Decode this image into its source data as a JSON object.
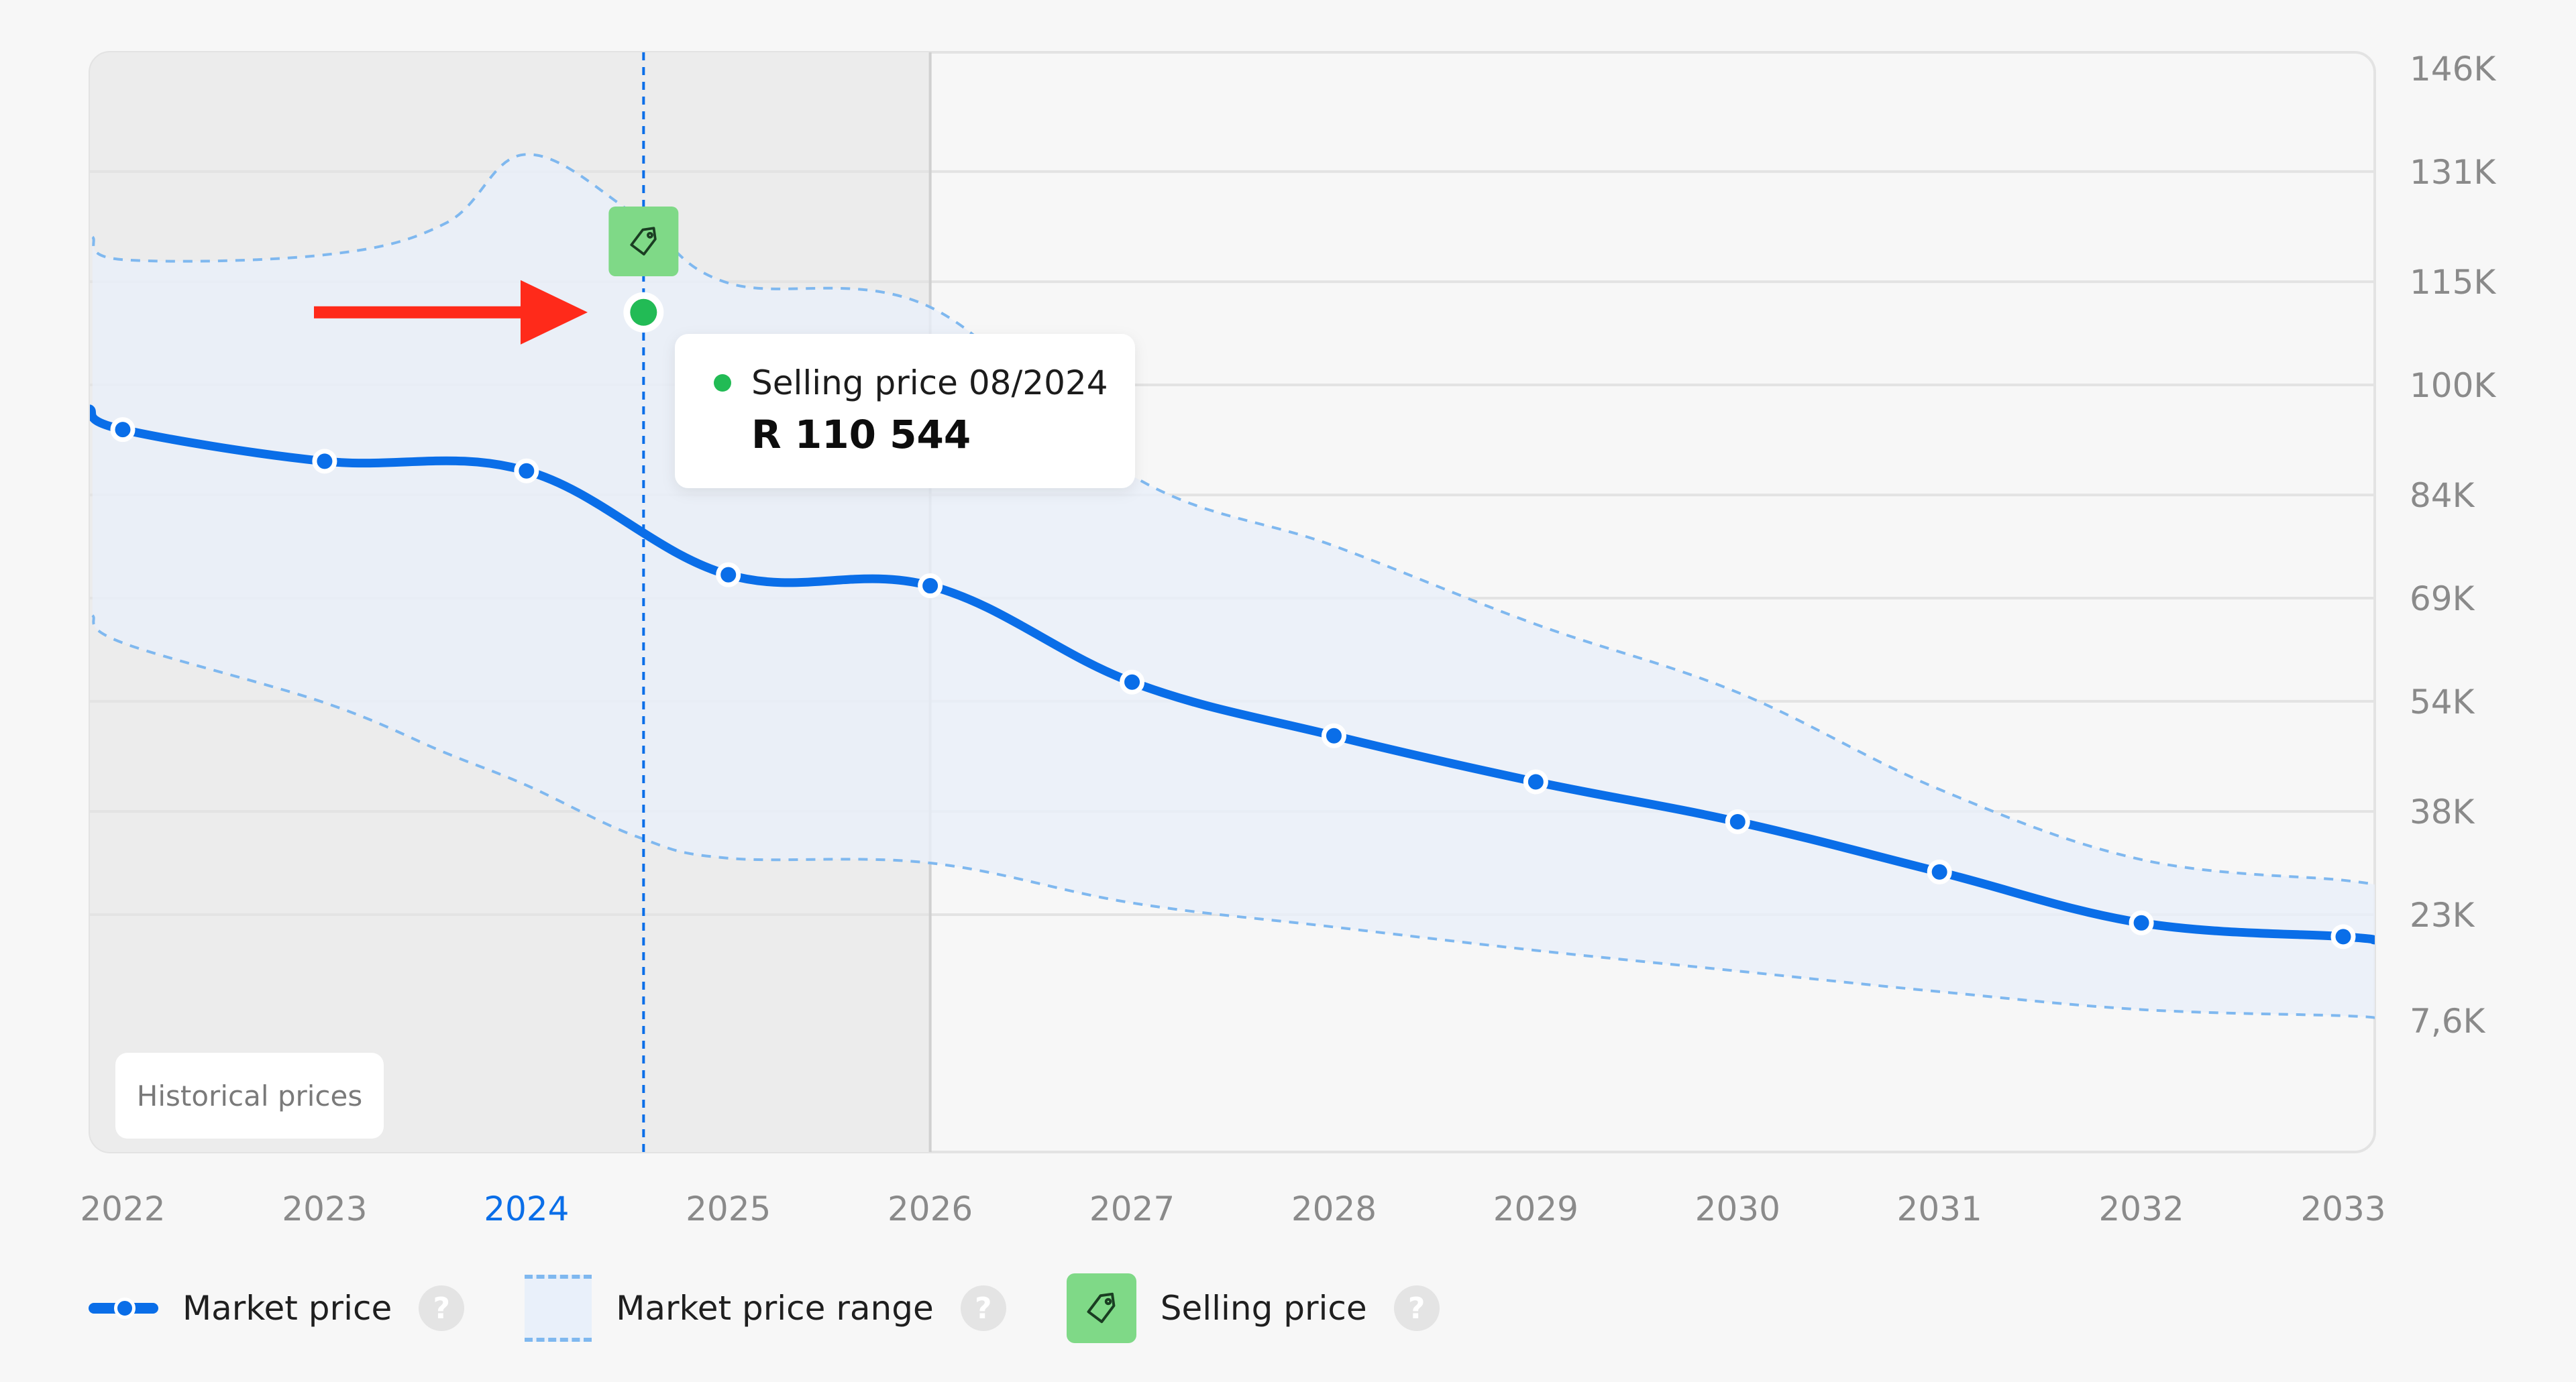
{
  "chart_data": {
    "type": "line",
    "x": [
      2022,
      2023,
      2024,
      2025,
      2026,
      2027,
      2028,
      2029,
      2030,
      2031,
      2032,
      2033
    ],
    "x_tick_labels": [
      "2022",
      "2023",
      "2024",
      "2025",
      "2026",
      "2027",
      "2028",
      "2029",
      "2030",
      "2031",
      "2032",
      "2033"
    ],
    "highlighted_tick": "2024",
    "y_tick_labels": [
      "146K",
      "131K",
      "115K",
      "100K",
      "84K",
      "69K",
      "54K",
      "38K",
      "23K",
      "7,6K"
    ],
    "y_ticks": [
      146000,
      131000,
      115000,
      100000,
      84000,
      69000,
      54000,
      38000,
      23000,
      7600
    ],
    "ylim": [
      7600,
      146000
    ],
    "series": [
      {
        "name": "Market price",
        "color": "#0a6ee8",
        "values": [
          93500,
          88900,
          87500,
          72400,
          70800,
          56800,
          49000,
          42300,
          36500,
          29200,
          21800,
          19800
        ]
      }
    ],
    "range": {
      "name": "Market price range",
      "points": [
        {
          "x": 2021.85,
          "lower": 66500,
          "upper": 121500
        },
        {
          "x": 2022,
          "lower": 62500,
          "upper": 118200
        },
        {
          "x": 2023,
          "lower": 53800,
          "upper": 118900
        },
        {
          "x": 2023.6,
          "lower": 46500,
          "upper": 123500
        },
        {
          "x": 2024,
          "lower": 41800,
          "upper": 133500
        },
        {
          "x": 2024.55,
          "lower": 34300,
          "upper": 124500
        },
        {
          "x": 2025,
          "lower": 31200,
          "upper": 114800
        },
        {
          "x": 2026,
          "lower": 30500,
          "upper": 111300
        },
        {
          "x": 2027,
          "lower": 24700,
          "upper": 86800
        },
        {
          "x": 2028,
          "lower": 21200,
          "upper": 76600
        },
        {
          "x": 2029,
          "lower": 17800,
          "upper": 65200
        },
        {
          "x": 2030,
          "lower": 14800,
          "upper": 55300
        },
        {
          "x": 2031,
          "lower": 11800,
          "upper": 41200
        },
        {
          "x": 2032,
          "lower": 9200,
          "upper": 31000
        },
        {
          "x": 2033,
          "lower": 8300,
          "upper": 28000
        },
        {
          "x": 2033.17,
          "lower": 7900,
          "upper": 27200
        }
      ]
    },
    "selling_price": {
      "x": 2024.58,
      "value": 110544,
      "label": "Selling price 08/2024",
      "value_text": "R 110 544",
      "color": "#22bb55"
    },
    "historical_until": 2026,
    "historical_label": "Historical prices",
    "grid": true,
    "legend_position": "bottom-left"
  },
  "legend": {
    "market_price": "Market price",
    "market_price_range": "Market price range",
    "selling_price": "Selling price",
    "help": "?"
  },
  "colors": {
    "accent": "#0a6ee8",
    "range_fill": "#e9f0fa",
    "range_dash": "#7fb8ef",
    "selling_dot": "#22bb55",
    "tag_bg": "#7fd987",
    "arrow": "#ff2a1a",
    "historical_shade": "#ececec"
  },
  "icons": {
    "selling_tag": "tag-icon",
    "help": "question-icon",
    "arrow": "arrow-right-icon"
  }
}
